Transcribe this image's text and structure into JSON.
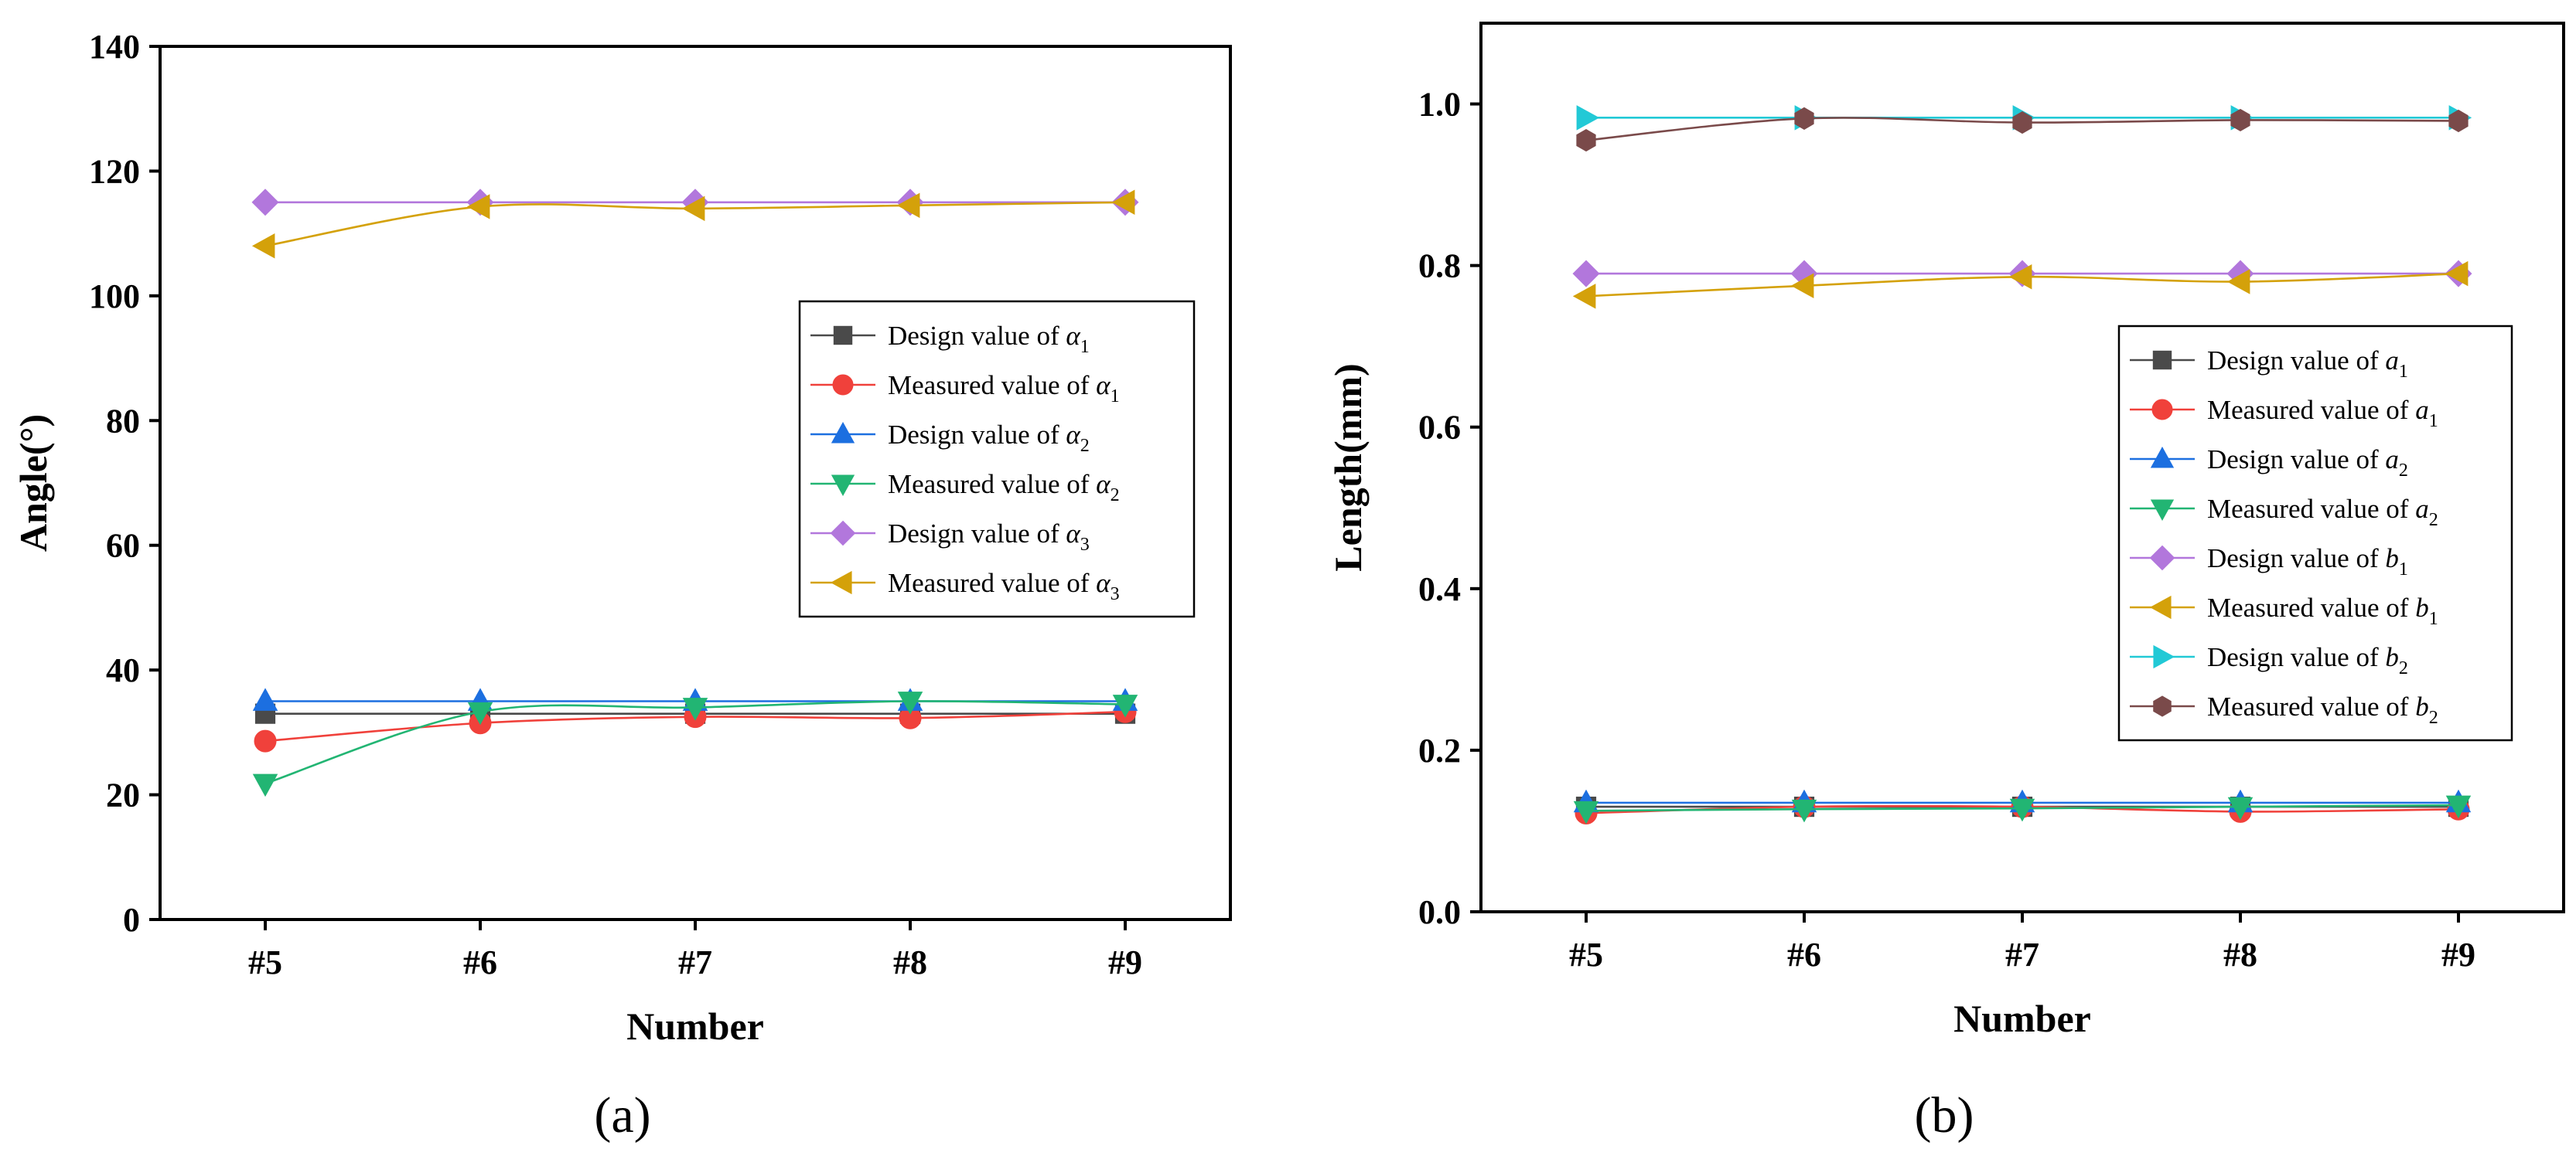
{
  "figure": {
    "panels": [
      {
        "label": "(a)"
      },
      {
        "label": "(b)"
      }
    ]
  },
  "chart_data": [
    {
      "type": "line",
      "panel": "(a)",
      "title": "",
      "xlabel": "Number",
      "ylabel": "Angle(°)",
      "categories": [
        "#5",
        "#6",
        "#7",
        "#8",
        "#9"
      ],
      "ylim": [
        0,
        140
      ],
      "yticks": [
        "0",
        "20",
        "40",
        "60",
        "80",
        "100",
        "120",
        "140"
      ],
      "grid": false,
      "legend_position": "center-right",
      "series": [
        {
          "name": "Design value of α1",
          "prefix": "Design value of ",
          "symbol": "α",
          "sub": "1",
          "color": "#4a4a4a",
          "marker": "square",
          "values": [
            33,
            33,
            33,
            33,
            33
          ]
        },
        {
          "name": "Measured value of α1",
          "prefix": "Measured value of ",
          "symbol": "α",
          "sub": "1",
          "color": "#f0413b",
          "marker": "circle",
          "values": [
            28.6,
            31.5,
            32.5,
            32.3,
            33.3
          ]
        },
        {
          "name": "Design value of α2",
          "prefix": "Design value of ",
          "symbol": "α",
          "sub": "2",
          "color": "#1c6fe0",
          "marker": "triangle-up",
          "values": [
            35,
            35,
            35,
            35,
            35
          ]
        },
        {
          "name": "Measured value of α2",
          "prefix": "Measured value of ",
          "symbol": "α",
          "sub": "2",
          "color": "#22b573",
          "marker": "triangle-down",
          "values": [
            21.8,
            33.3,
            34.0,
            35.0,
            34.5
          ]
        },
        {
          "name": "Design value of α3",
          "prefix": "Design value of ",
          "symbol": "α",
          "sub": "3",
          "color": "#b277dc",
          "marker": "diamond",
          "values": [
            115,
            115,
            115,
            115,
            115
          ]
        },
        {
          "name": "Measured value of α3",
          "prefix": "Measured value of ",
          "symbol": "α",
          "sub": "3",
          "color": "#d4a10a",
          "marker": "triangle-left",
          "values": [
            108,
            114.3,
            114,
            114.5,
            115
          ]
        }
      ]
    },
    {
      "type": "line",
      "panel": "(b)",
      "title": "",
      "xlabel": "Number",
      "ylabel": "Length(mm)",
      "categories": [
        "#5",
        "#6",
        "#7",
        "#8",
        "#9"
      ],
      "ylim": [
        0,
        1.1
      ],
      "yticks": [
        "0.0",
        "0.2",
        "0.4",
        "0.6",
        "0.8",
        "1.0"
      ],
      "grid": false,
      "legend_position": "center-right",
      "series": [
        {
          "name": "Design value of a1",
          "prefix": "Design value of ",
          "symbol": "a",
          "sub": "1",
          "color": "#4a4a4a",
          "marker": "square",
          "values": [
            0.13,
            0.13,
            0.13,
            0.13,
            0.13
          ]
        },
        {
          "name": "Measured value of a1",
          "prefix": "Measured value of ",
          "symbol": "a",
          "sub": "1",
          "color": "#f0413b",
          "marker": "circle",
          "values": [
            0.122,
            0.13,
            0.13,
            0.124,
            0.127
          ]
        },
        {
          "name": "Design value of a2",
          "prefix": "Design value of ",
          "symbol": "a",
          "sub": "2",
          "color": "#1c6fe0",
          "marker": "triangle-up",
          "values": [
            0.135,
            0.135,
            0.135,
            0.135,
            0.135
          ]
        },
        {
          "name": "Measured value of a2",
          "prefix": "Measured value of ",
          "symbol": "a",
          "sub": "2",
          "color": "#22b573",
          "marker": "triangle-down",
          "values": [
            0.125,
            0.127,
            0.128,
            0.13,
            0.132
          ]
        },
        {
          "name": "Design value of b1",
          "prefix": "Design value of ",
          "symbol": "b",
          "sub": "1",
          "color": "#b277dc",
          "marker": "diamond",
          "values": [
            0.79,
            0.79,
            0.79,
            0.79,
            0.79
          ]
        },
        {
          "name": "Measured value of b1",
          "prefix": "Measured value of ",
          "symbol": "b",
          "sub": "1",
          "color": "#d4a10a",
          "marker": "triangle-left",
          "values": [
            0.762,
            0.775,
            0.786,
            0.78,
            0.79
          ]
        },
        {
          "name": "Design value of b2",
          "prefix": "Design value of ",
          "symbol": "b",
          "sub": "2",
          "color": "#22c9d6",
          "marker": "triangle-right",
          "values": [
            0.983,
            0.983,
            0.983,
            0.983,
            0.983
          ]
        },
        {
          "name": "Measured value of b2",
          "prefix": "Measured value of ",
          "symbol": "b",
          "sub": "2",
          "color": "#7a4a4a",
          "marker": "hexagon",
          "values": [
            0.955,
            0.982,
            0.977,
            0.98,
            0.979
          ]
        }
      ]
    }
  ]
}
